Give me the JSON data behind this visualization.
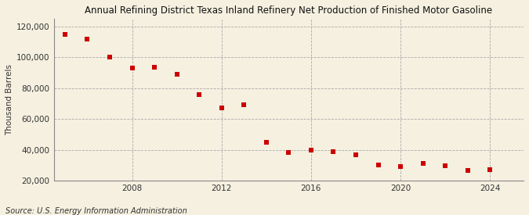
{
  "title": "Annual Refining District Texas Inland Refinery Net Production of Finished Motor Gasoline",
  "ylabel": "Thousand Barrels",
  "source": "Source: U.S. Energy Information Administration",
  "years": [
    2005,
    2006,
    2007,
    2008,
    2009,
    2010,
    2011,
    2012,
    2013,
    2014,
    2015,
    2016,
    2017,
    2018,
    2019,
    2020,
    2021,
    2022,
    2023,
    2024
  ],
  "values": [
    115000,
    112000,
    100000,
    93000,
    93500,
    89000,
    76000,
    67000,
    69000,
    45000,
    38500,
    40000,
    39000,
    37000,
    30000,
    29000,
    31000,
    29500,
    26500,
    27000
  ],
  "marker_color": "#cc0000",
  "marker": "s",
  "marker_size": 4,
  "bg_color": "#f5f0e0",
  "grid_color": "#aaaaaa",
  "ylim": [
    20000,
    125000
  ],
  "yticks": [
    20000,
    40000,
    60000,
    80000,
    100000,
    120000
  ],
  "xticks": [
    2008,
    2012,
    2016,
    2020,
    2024
  ],
  "xlim": [
    2004.5,
    2025.5
  ],
  "title_fontsize": 8.5,
  "ylabel_fontsize": 7.5,
  "tick_fontsize": 7.5,
  "source_fontsize": 7.0
}
